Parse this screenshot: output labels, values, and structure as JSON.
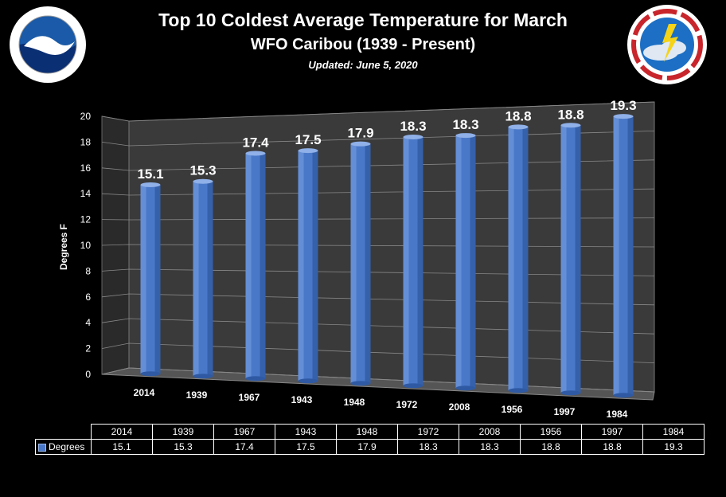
{
  "header": {
    "title": "Top 10 Coldest Average Temperature for March",
    "subtitle": "WFO Caribou (1939 - Present)",
    "updated": "Updated: June 5, 2020"
  },
  "logos": {
    "left": "noaa-logo",
    "right": "nws-logo"
  },
  "chart_data": {
    "type": "bar",
    "title": "Top 10 Coldest Average Temperature for March",
    "subtitle": "WFO Caribou (1939 - Present)",
    "ylabel": "Degrees F",
    "xlabel": "",
    "ylim": [
      0,
      20
    ],
    "yticks": [
      "0",
      "2",
      "4",
      "6",
      "8",
      "10",
      "12",
      "14",
      "16",
      "18",
      "20"
    ],
    "categories": [
      "2014",
      "1939",
      "1967",
      "1943",
      "1948",
      "1972",
      "2008",
      "1956",
      "1997",
      "1984"
    ],
    "series": [
      {
        "name": "Degrees",
        "values": [
          15.1,
          15.3,
          17.4,
          17.5,
          17.9,
          18.3,
          18.3,
          18.8,
          18.8,
          19.3
        ],
        "labels": [
          "15.1",
          "15.3",
          "17.4",
          "17.5",
          "17.9",
          "18.3",
          "18.3",
          "18.8",
          "18.8",
          "19.3"
        ]
      }
    ],
    "grid": true,
    "bar_color": "#4a78c9"
  },
  "data_table": {
    "row_label": "Degrees",
    "years": [
      "2014",
      "1939",
      "1967",
      "1943",
      "1948",
      "1972",
      "2008",
      "1956",
      "1997",
      "1984"
    ],
    "values": [
      "15.1",
      "15.3",
      "17.4",
      "17.5",
      "17.9",
      "18.3",
      "18.3",
      "18.8",
      "18.8",
      "19.3"
    ]
  }
}
